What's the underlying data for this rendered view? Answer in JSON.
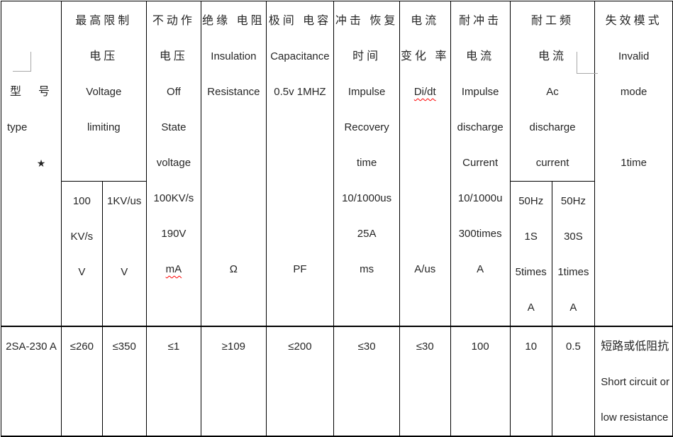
{
  "misspelled": [
    "mA",
    "Di/dt"
  ],
  "colors": {
    "border": "#000000",
    "text": "#262626",
    "squiggle": "#ff0000",
    "corner_mark": "#a8a8a8"
  },
  "icons": {
    "corner_marks": [
      "corner-mark-bottom-right",
      "corner-mark-bottom-left"
    ],
    "star": "black-star"
  },
  "table": {
    "header": {
      "type": {
        "cn": "型　号",
        "en": "type",
        "star": "★"
      },
      "voltage_limiting": {
        "lines": [
          "最高限制",
          "电压",
          "Voltage",
          "limiting"
        ]
      },
      "off_state_voltage": {
        "lines": [
          "不动作",
          "电压",
          "Off",
          "State",
          "voltage",
          "100KV/s",
          "190V",
          "mA"
        ]
      },
      "insulation_resistance": {
        "lines": [
          "绝缘 电阻",
          "Insulation",
          "Resistance",
          "",
          "",
          "",
          "",
          "Ω"
        ]
      },
      "capacitance": {
        "lines": [
          "极间 电容",
          "Capacitance",
          "0.5v 1MHZ",
          "",
          "",
          "",
          "",
          "PF"
        ]
      },
      "impulse_recovery_time": {
        "lines": [
          "冲击 恢复",
          "时间",
          "Impulse",
          "Recovery",
          "time",
          "10/1000us",
          "25A",
          "ms"
        ]
      },
      "current_rate_di_dt": {
        "lines": [
          "电流",
          "变化 率",
          "Di/dt",
          "",
          "",
          "",
          "",
          "A/us"
        ]
      },
      "impulse_discharge_current": {
        "lines": [
          "耐冲击",
          "电流",
          "Impulse",
          "discharge",
          "Current",
          "10/1000u",
          "300times",
          "A"
        ]
      },
      "ac_discharge_current": {
        "lines": [
          "耐工频",
          "电流",
          "Ac",
          "discharge",
          "current"
        ]
      },
      "invalid_mode": {
        "lines": [
          "失效模式",
          "Invalid",
          "mode",
          "",
          "1time"
        ]
      },
      "sub_100kvs": {
        "lines": [
          "100",
          "KV/s",
          "V"
        ]
      },
      "sub_1kvus": {
        "lines": [
          "1KV/us",
          "",
          "V"
        ]
      },
      "sub_50hz_1s": {
        "lines": [
          "50Hz",
          "1S",
          "5times",
          "A"
        ]
      },
      "sub_50hz_30s": {
        "lines": [
          "50Hz",
          "30S",
          "1times",
          "A"
        ]
      }
    },
    "row": {
      "type": "2SA-230 A",
      "values": [
        "≤260",
        "≤350",
        "≤1",
        "≥109",
        "≤200",
        "≤30",
        "≤30",
        "100",
        "10",
        "0.5"
      ],
      "failure_mode": {
        "lines": [
          "短路或低阻抗",
          "Short circuit or",
          "low resistance"
        ]
      }
    }
  }
}
